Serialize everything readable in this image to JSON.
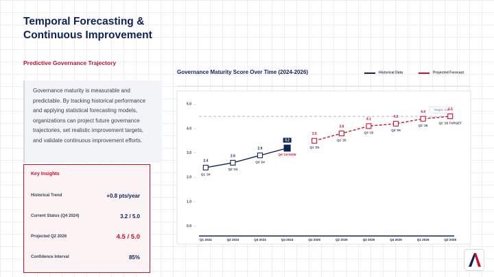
{
  "header": {
    "title": "Temporal Forecasting & Continuous Improvement",
    "subtitle": "Predictive Governance Trajectory"
  },
  "body": "Governance maturity is measurable and predictable. By tracking historical performance and applying statistical forecasting models, organizations can project future governance trajectories, set realistic improvement targets, and validate continuous improvement efforts.",
  "insights": {
    "title": "Key Insights",
    "rows": [
      {
        "label": "Historical Trend",
        "value": "+0.8 pts/year"
      },
      {
        "label": "Current Status (Q4 2024)",
        "value": "3.2 / 5.0"
      },
      {
        "label": "Projected Q2 2026",
        "value": "4.5 / 5.0"
      },
      {
        "label": "Confidence Interval",
        "value": "85%"
      }
    ]
  },
  "chart_data": {
    "type": "line",
    "title": "Governance Maturity Score Over Time (2024-2026)",
    "categories": [
      "Q1 2024",
      "Q2 2024",
      "Q3 2024",
      "Q4 2024",
      "Q1 2025",
      "Q2 2025",
      "Q3 2025",
      "Q4 2025",
      "Q1 2026",
      "Q2 2026"
    ],
    "point_labels": [
      "Q1 '24",
      "Q2 '24",
      "Q3 '24",
      "Q4 '24 NOW",
      "Q1 '25",
      "Q2 '25",
      "Q3 '25",
      "Q4 '25",
      "Q1 '26",
      "Q2 '26 TARGET"
    ],
    "series": [
      {
        "name": "Historical Data",
        "color": "#0f2257",
        "dashed": false,
        "values": [
          2.4,
          2.6,
          2.9,
          3.2,
          null,
          null,
          null,
          null,
          null,
          null
        ]
      },
      {
        "name": "Projected Forecast",
        "color": "#c8102e",
        "dashed": true,
        "values": [
          null,
          null,
          null,
          null,
          3.5,
          3.8,
          4.1,
          4.2,
          4.4,
          4.5
        ]
      }
    ],
    "highlight_index": 3,
    "target": {
      "value": 4.5,
      "label": "Target: 4.5"
    },
    "ylim": [
      -0.4,
      5.4
    ],
    "yticks": [
      {
        "value": 0,
        "label": "0.0"
      },
      {
        "value": 1,
        "label": "1.0"
      },
      {
        "value": 2,
        "label": "2.0"
      },
      {
        "value": 3,
        "label": "3.0"
      },
      {
        "value": 4,
        "label": "4.0"
      },
      {
        "value": 5,
        "label": "5.0"
      }
    ],
    "grid": false,
    "legend": "top-right"
  }
}
